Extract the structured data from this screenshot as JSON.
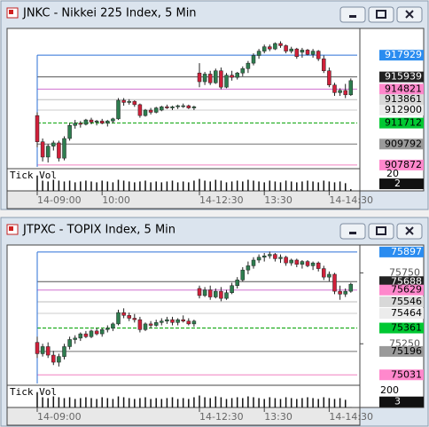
{
  "chart_data": [
    {
      "type": "candlestick",
      "title": "JNKC - Nikkei 225 Index, 5 Min",
      "up_color": "#2e7d4f",
      "down_color": "#d0203a",
      "ylim": [
        907700,
        920300
      ],
      "yticks": [],
      "xticks": [
        {
          "value": 0,
          "label": "14-09:00"
        },
        {
          "value": 12,
          "label": "10:00"
        },
        {
          "value": 30,
          "label": "14-12:30"
        },
        {
          "value": 42,
          "label": "13:30"
        },
        {
          "value": 54,
          "label": "14-14:30"
        }
      ],
      "levels": [
        {
          "value": 917929,
          "color": "#2a6fd6",
          "bg": "#2a8cf0",
          "fg": "#ffffff",
          "dash": false
        },
        {
          "value": 915939,
          "color": "#555555",
          "bg": "#222222",
          "fg": "#ffffff",
          "dash": false
        },
        {
          "value": 914821,
          "color": "#d070d0",
          "bg": "#ff88cc",
          "fg": "#000000",
          "dash": false
        },
        {
          "value": 913861,
          "color": "#bbbbbb",
          "bg": "#d8d8d8",
          "fg": "#000000",
          "dash": false
        },
        {
          "value": 912900,
          "color": "#cccccc",
          "bg": "#ececec",
          "fg": "#000000",
          "dash": false
        },
        {
          "value": 911712,
          "color": "#00a000",
          "bg": "#00c832",
          "fg": "#000000",
          "dash": true
        },
        {
          "value": 909792,
          "color": "#707070",
          "bg": "#9a9a9a",
          "fg": "#000000",
          "dash": false
        },
        {
          "value": 907872,
          "color": "#f080c0",
          "bg": "#ff88cc",
          "fg": "#000000",
          "dash": false
        }
      ],
      "candles": [
        [
          912400,
          912700,
          909500,
          910000
        ],
        [
          910000,
          910300,
          908200,
          908600
        ],
        [
          908600,
          909800,
          908100,
          909600
        ],
        [
          909600,
          910100,
          909200,
          909900
        ],
        [
          909900,
          910100,
          908200,
          908500
        ],
        [
          908500,
          910500,
          908300,
          910300
        ],
        [
          910300,
          911700,
          910100,
          911500
        ],
        [
          911500,
          912000,
          911200,
          911700
        ],
        [
          911700,
          911900,
          911300,
          911600
        ],
        [
          911600,
          912100,
          911500,
          912000
        ],
        [
          912000,
          912200,
          911600,
          911800
        ],
        [
          911800,
          912000,
          911500,
          911900
        ],
        [
          911900,
          912100,
          911600,
          911700
        ],
        [
          911700,
          912000,
          911400,
          911900
        ],
        [
          911900,
          912200,
          911700,
          912100
        ],
        [
          912100,
          914000,
          912000,
          913800
        ],
        [
          913800,
          914000,
          913300,
          913600
        ],
        [
          913600,
          913900,
          913400,
          913700
        ],
        [
          913700,
          913800,
          913200,
          913400
        ],
        [
          913400,
          913500,
          912200,
          912400
        ],
        [
          912400,
          913000,
          912300,
          912900
        ],
        [
          912900,
          913100,
          912500,
          912700
        ],
        [
          912700,
          913200,
          912600,
          913100
        ],
        [
          912900,
          913300,
          912800,
          913200
        ],
        [
          913200,
          913400,
          913000,
          913100
        ],
        [
          913100,
          913300,
          912900,
          913200
        ],
        [
          913200,
          913400,
          913000,
          913300
        ],
        [
          913300,
          913500,
          913100,
          913300
        ],
        [
          913300,
          913400,
          913000,
          913100
        ],
        [
          913100,
          913300,
          912900,
          913200
        ],
        [
          916300,
          917200,
          915000,
          915500
        ],
        [
          915500,
          916400,
          915200,
          916200
        ],
        [
          916200,
          916500,
          915200,
          915400
        ],
        [
          915400,
          916700,
          915300,
          916500
        ],
        [
          916500,
          916800,
          914800,
          915000
        ],
        [
          915000,
          916300,
          914900,
          916100
        ],
        [
          916100,
          916500,
          915600,
          915900
        ],
        [
          915900,
          916400,
          915700,
          916300
        ],
        [
          916300,
          916900,
          916000,
          916700
        ],
        [
          916700,
          917400,
          916300,
          917200
        ],
        [
          917200,
          918100,
          917000,
          917900
        ],
        [
          917900,
          918500,
          917600,
          918300
        ],
        [
          918300,
          918900,
          918100,
          918700
        ],
        [
          918700,
          918900,
          918300,
          918500
        ],
        [
          918500,
          919100,
          918400,
          919000
        ],
        [
          919000,
          919200,
          918600,
          918800
        ],
        [
          918800,
          918900,
          918100,
          918300
        ],
        [
          918300,
          918700,
          918100,
          918500
        ],
        [
          918500,
          918600,
          917600,
          917800
        ],
        [
          918200,
          918600,
          917700,
          918400
        ],
        [
          918400,
          918500,
          917900,
          918000
        ],
        [
          918000,
          918500,
          917700,
          918300
        ],
        [
          918300,
          918400,
          917400,
          917600
        ],
        [
          917600,
          917900,
          916300,
          916500
        ],
        [
          916500,
          916800,
          915000,
          915200
        ],
        [
          915200,
          915400,
          914200,
          914500
        ],
        [
          914500,
          914900,
          914200,
          914700
        ],
        [
          914700,
          915300,
          914000,
          914300
        ],
        [
          914300,
          915800,
          914200,
          915600
        ]
      ],
      "volume": {
        "label": "Tick Vol",
        "ylim": [
          0,
          25
        ],
        "ticks": [
          20
        ],
        "values": [
          18,
          12,
          11,
          13,
          12,
          11,
          12,
          10,
          11,
          12,
          11,
          10,
          12,
          11,
          10,
          13,
          12,
          11,
          10,
          11,
          12,
          10,
          11,
          10,
          11,
          12,
          10,
          11,
          10,
          12,
          14,
          12,
          11,
          13,
          12,
          10,
          11,
          12,
          11,
          13,
          12,
          11,
          10,
          12,
          11,
          10,
          12,
          11,
          10,
          11,
          12,
          11,
          10,
          12,
          11,
          10,
          11,
          9,
          2
        ]
      }
    },
    {
      "type": "candlestick",
      "title": "JTPXC - TOPIX Index, 5 Min",
      "up_color": "#2e7d4f",
      "down_color": "#d0203a",
      "ylim": [
        74970,
        75940
      ],
      "yticks": [
        75750,
        75250
      ],
      "xticks": [
        {
          "value": 0,
          "label": "14-09:00"
        },
        {
          "value": 30,
          "label": "14-12:30"
        },
        {
          "value": 42,
          "label": "13:30"
        },
        {
          "value": 54,
          "label": "14-14:30"
        }
      ],
      "levels": [
        {
          "value": 75897,
          "color": "#2a6fd6",
          "bg": "#2a8cf0",
          "fg": "#ffffff",
          "dash": false
        },
        {
          "value": 75688,
          "color": "#555555",
          "bg": "#222222",
          "fg": "#ffffff",
          "dash": false
        },
        {
          "value": 75629,
          "color": "#d070d0",
          "bg": "#ff88cc",
          "fg": "#000000",
          "dash": false
        },
        {
          "value": 75546,
          "color": "#bbbbbb",
          "bg": "#d8d8d8",
          "fg": "#000000",
          "dash": false
        },
        {
          "value": 75464,
          "color": "#cccccc",
          "bg": "#ececec",
          "fg": "#000000",
          "dash": false
        },
        {
          "value": 75361,
          "color": "#00a000",
          "bg": "#00c832",
          "fg": "#000000",
          "dash": true
        },
        {
          "value": 75196,
          "color": "#707070",
          "bg": "#9a9a9a",
          "fg": "#000000",
          "dash": false
        },
        {
          "value": 75031,
          "color": "#f080c0",
          "bg": "#ff88cc",
          "fg": "#000000",
          "dash": false
        }
      ],
      "candles": [
        [
          75260,
          75300,
          75150,
          75180
        ],
        [
          75180,
          75250,
          75160,
          75230
        ],
        [
          75230,
          75260,
          75150,
          75170
        ],
        [
          75170,
          75200,
          75100,
          75120
        ],
        [
          75120,
          75180,
          75090,
          75160
        ],
        [
          75160,
          75250,
          75140,
          75230
        ],
        [
          75230,
          75300,
          75210,
          75280
        ],
        [
          75280,
          75310,
          75250,
          75290
        ],
        [
          75290,
          75330,
          75270,
          75320
        ],
        [
          75320,
          75340,
          75290,
          75300
        ],
        [
          75300,
          75350,
          75290,
          75340
        ],
        [
          75340,
          75360,
          75310,
          75320
        ],
        [
          75320,
          75360,
          75300,
          75350
        ],
        [
          75350,
          75380,
          75330,
          75360
        ],
        [
          75360,
          75400,
          75340,
          75390
        ],
        [
          75390,
          75490,
          75380,
          75470
        ],
        [
          75470,
          75500,
          75430,
          75450
        ],
        [
          75450,
          75470,
          75410,
          75430
        ],
        [
          75430,
          75460,
          75400,
          75420
        ],
        [
          75420,
          75440,
          75330,
          75350
        ],
        [
          75350,
          75400,
          75340,
          75390
        ],
        [
          75390,
          75410,
          75360,
          75380
        ],
        [
          75380,
          75420,
          75370,
          75400
        ],
        [
          75400,
          75430,
          75380,
          75410
        ],
        [
          75410,
          75440,
          75390,
          75420
        ],
        [
          75420,
          75440,
          75380,
          75400
        ],
        [
          75400,
          75430,
          75380,
          75420
        ],
        [
          75420,
          75450,
          75400,
          75410
        ],
        [
          75410,
          75430,
          75380,
          75390
        ],
        [
          75390,
          75420,
          75370,
          75410
        ],
        [
          75640,
          75660,
          75570,
          75590
        ],
        [
          75590,
          75650,
          75580,
          75630
        ],
        [
          75630,
          75660,
          75560,
          75580
        ],
        [
          75580,
          75640,
          75570,
          75620
        ],
        [
          75620,
          75650,
          75550,
          75570
        ],
        [
          75570,
          75630,
          75560,
          75610
        ],
        [
          75610,
          75680,
          75600,
          75660
        ],
        [
          75660,
          75720,
          75640,
          75700
        ],
        [
          75700,
          75790,
          75690,
          75770
        ],
        [
          75770,
          75830,
          75740,
          75800
        ],
        [
          75800,
          75860,
          75780,
          75840
        ],
        [
          75840,
          75880,
          75820,
          75860
        ],
        [
          75860,
          75890,
          75830,
          75870
        ],
        [
          75870,
          75900,
          75850,
          75880
        ],
        [
          75880,
          75890,
          75830,
          75850
        ],
        [
          75850,
          75880,
          75820,
          75860
        ],
        [
          75860,
          75870,
          75800,
          75820
        ],
        [
          75820,
          75850,
          75800,
          75840
        ],
        [
          75840,
          75850,
          75790,
          75810
        ],
        [
          75810,
          75840,
          75780,
          75830
        ],
        [
          75830,
          75840,
          75790,
          75800
        ],
        [
          75800,
          75830,
          75770,
          75820
        ],
        [
          75820,
          75830,
          75760,
          75780
        ],
        [
          75780,
          75800,
          75700,
          75720
        ],
        [
          75720,
          75760,
          75690,
          75740
        ],
        [
          75740,
          75750,
          75600,
          75620
        ],
        [
          75620,
          75660,
          75560,
          75600
        ],
        [
          75600,
          75640,
          75580,
          75620
        ],
        [
          75620,
          75680,
          75610,
          75670
        ]
      ],
      "volume": {
        "label": "Tick Vol",
        "ylim": [
          0,
          250
        ],
        "ticks": [
          200
        ],
        "values": [
          180,
          120,
          110,
          130,
          120,
          110,
          120,
          100,
          110,
          120,
          110,
          100,
          120,
          110,
          100,
          130,
          120,
          110,
          100,
          110,
          120,
          100,
          110,
          100,
          110,
          120,
          100,
          110,
          100,
          120,
          140,
          120,
          110,
          130,
          120,
          100,
          110,
          120,
          110,
          130,
          120,
          110,
          100,
          120,
          110,
          100,
          120,
          110,
          100,
          110,
          120,
          110,
          100,
          120,
          110,
          100,
          110,
          90,
          3
        ]
      }
    }
  ]
}
